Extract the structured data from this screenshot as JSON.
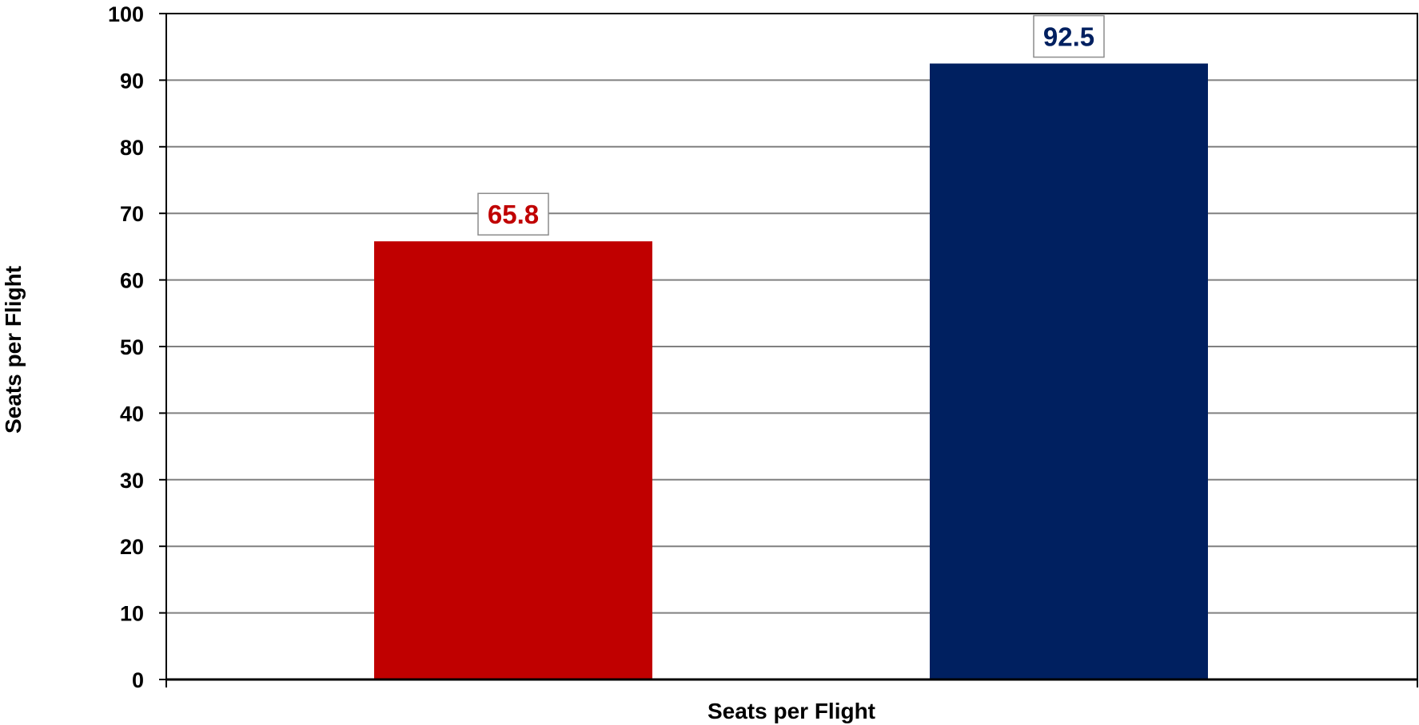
{
  "chart_data": {
    "type": "bar",
    "categories": [
      ""
    ],
    "series": [
      {
        "values": [
          65.8
        ],
        "color": "#C00000"
      },
      {
        "values": [
          92.5
        ],
        "color": "#002060"
      }
    ],
    "data_labels": [
      "65.8",
      "92.5"
    ],
    "title": "",
    "xlabel": "Seats per Flight",
    "ylabel": "Seats per Flight",
    "ylim": [
      0,
      100
    ],
    "yticks": [
      "0",
      "10",
      "20",
      "30",
      "40",
      "50",
      "60",
      "70",
      "80",
      "90",
      "100"
    ],
    "grid": true,
    "legend": "none"
  }
}
